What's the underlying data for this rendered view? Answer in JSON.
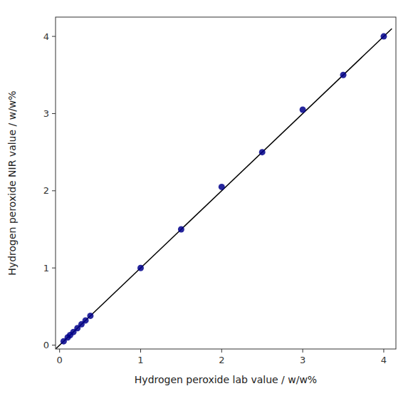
{
  "chart_data": {
    "type": "scatter",
    "xlabel": "Hydrogen peroxide lab value / w/w%",
    "ylabel": "Hydrogen peroxide NIR value / w/w%",
    "xlim": [
      -0.05,
      4.15
    ],
    "ylim": [
      -0.05,
      4.25
    ],
    "xticks": [
      0,
      1,
      2,
      3,
      4
    ],
    "yticks": [
      0,
      1,
      2,
      3,
      4
    ],
    "grid": false,
    "series": [
      {
        "type": "line",
        "color": "#000000",
        "x": [
          -0.05,
          4.1
        ],
        "values": [
          -0.05,
          4.1
        ]
      },
      {
        "type": "scatter",
        "color": "#00008B",
        "x": [
          0.05,
          0.1,
          0.13,
          0.17,
          0.22,
          0.27,
          0.32,
          0.38,
          1.0,
          1.5,
          2.0,
          2.5,
          3.0,
          3.5,
          4.0
        ],
        "values": [
          0.05,
          0.1,
          0.13,
          0.17,
          0.22,
          0.27,
          0.32,
          0.38,
          1.0,
          1.5,
          2.05,
          2.5,
          3.05,
          3.5,
          4.0
        ]
      }
    ]
  }
}
